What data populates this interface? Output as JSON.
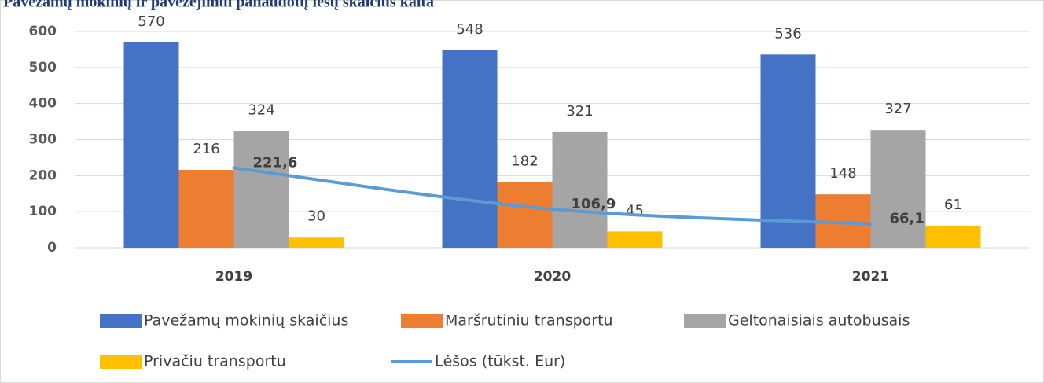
{
  "chart_data": {
    "type": "bar",
    "title": "Pavežamų mokinių ir pavežėjimui panaudotų lėšų skaičius kaita",
    "categories": [
      "2019",
      "2020",
      "2021"
    ],
    "series": [
      {
        "name": "Pavežamų mokinių skaičius",
        "color": "#4472c4",
        "values": [
          570,
          548,
          536
        ]
      },
      {
        "name": "Maršrutiniu transportu",
        "color": "#ed7d31",
        "values": [
          216,
          182,
          148
        ]
      },
      {
        "name": "Geltonaisiais autobusais",
        "color": "#a5a5a5",
        "values": [
          324,
          321,
          327
        ]
      },
      {
        "name": "Privačiu transportu",
        "color": "#ffc000",
        "values": [
          30,
          45,
          61
        ]
      },
      {
        "name": "Lėšos (tūkst. Eur)",
        "color": "#5b9bd5",
        "type": "line",
        "values": [
          221.6,
          106.9,
          66.1
        ],
        "value_labels": [
          "221,6",
          "106,9",
          "66,1"
        ]
      }
    ],
    "ylim": [
      0,
      600
    ],
    "yticks": [
      0,
      100,
      200,
      300,
      400,
      500,
      600
    ],
    "grid": true,
    "legend": "bottom"
  }
}
